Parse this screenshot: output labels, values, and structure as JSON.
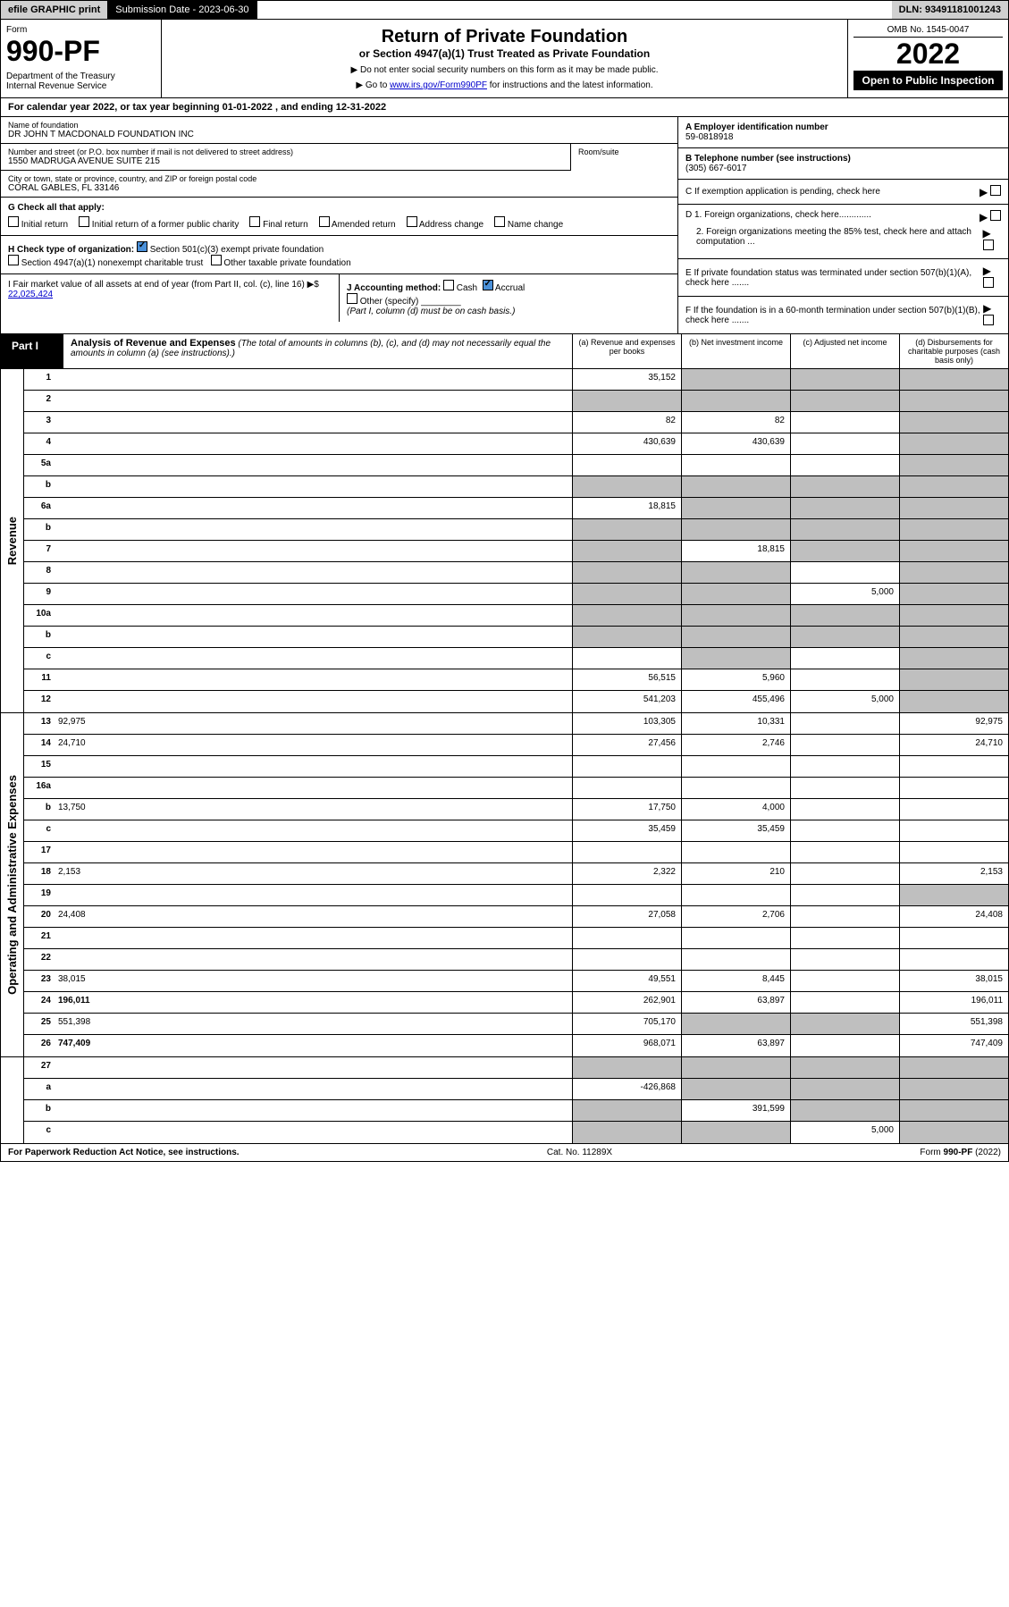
{
  "top": {
    "efile": "efile GRAPHIC print",
    "sub_label": "Submission Date - 2023-06-30",
    "dln": "DLN: 93491181001243"
  },
  "header": {
    "form_label": "Form",
    "form_num": "990-PF",
    "dept": "Department of the Treasury\nInternal Revenue Service",
    "title": "Return of Private Foundation",
    "subtitle": "or Section 4947(a)(1) Trust Treated as Private Foundation",
    "note1": "▶ Do not enter social security numbers on this form as it may be made public.",
    "note2_pre": "▶ Go to ",
    "note2_link": "www.irs.gov/Form990PF",
    "note2_post": " for instructions and the latest information.",
    "omb": "OMB No. 1545-0047",
    "year": "2022",
    "open": "Open to Public Inspection"
  },
  "cal_year": "For calendar year 2022, or tax year beginning 01-01-2022                    , and ending 12-31-2022",
  "info": {
    "name_lbl": "Name of foundation",
    "name_val": "DR JOHN T MACDONALD FOUNDATION INC",
    "addr_lbl": "Number and street (or P.O. box number if mail is not delivered to street address)",
    "addr_val": "1550 MADRUGA AVENUE SUITE 215",
    "room_lbl": "Room/suite",
    "city_lbl": "City or town, state or province, country, and ZIP or foreign postal code",
    "city_val": "CORAL GABLES, FL  33146",
    "a_lbl": "A Employer identification number",
    "a_val": "59-0818918",
    "b_lbl": "B Telephone number (see instructions)",
    "b_val": "(305) 667-6017",
    "c_lbl": "C If exemption application is pending, check here",
    "d1_lbl": "D 1. Foreign organizations, check here.............",
    "d2_lbl": "2. Foreign organizations meeting the 85% test, check here and attach computation ...",
    "e_lbl": "E If private foundation status was terminated under section 507(b)(1)(A), check here .......",
    "f_lbl": "F If the foundation is in a 60-month termination under section 507(b)(1)(B), check here ......."
  },
  "g": {
    "label": "G Check all that apply:",
    "opts": [
      "Initial return",
      "Initial return of a former public charity",
      "Final return",
      "Amended return",
      "Address change",
      "Name change"
    ]
  },
  "h": {
    "label": "H Check type of organization:",
    "opt1": "Section 501(c)(3) exempt private foundation",
    "opt2": "Section 4947(a)(1) nonexempt charitable trust",
    "opt3": "Other taxable private foundation"
  },
  "i": {
    "label": "I Fair market value of all assets at end of year (from Part II, col. (c), line 16) ▶$ ",
    "val": "22,025,424"
  },
  "j": {
    "label": "J Accounting method:",
    "cash": "Cash",
    "accrual": "Accrual",
    "other": "Other (specify)",
    "note": "(Part I, column (d) must be on cash basis.)"
  },
  "part1": {
    "label": "Part I",
    "title": "Analysis of Revenue and Expenses",
    "desc": " (The total of amounts in columns (b), (c), and (d) may not necessarily equal the amounts in column (a) (see instructions).)",
    "col_a": "(a) Revenue and expenses per books",
    "col_b": "(b) Net investment income",
    "col_c": "(c) Adjusted net income",
    "col_d": "(d) Disbursements for charitable purposes (cash basis only)"
  },
  "rows": [
    {
      "n": "1",
      "d": "",
      "a": "35,152",
      "b": "",
      "c": "",
      "grey": [
        "b",
        "c",
        "d"
      ]
    },
    {
      "n": "2",
      "d": "",
      "a": "",
      "b": "",
      "c": "",
      "grey": [
        "a",
        "b",
        "c",
        "d"
      ]
    },
    {
      "n": "3",
      "d": "",
      "a": "82",
      "b": "82",
      "c": "",
      "grey": [
        "d"
      ]
    },
    {
      "n": "4",
      "d": "",
      "a": "430,639",
      "b": "430,639",
      "c": "",
      "grey": [
        "d"
      ]
    },
    {
      "n": "5a",
      "d": "",
      "a": "",
      "b": "",
      "c": "",
      "grey": [
        "d"
      ]
    },
    {
      "n": "b",
      "d": "",
      "a": "",
      "b": "",
      "c": "",
      "grey": [
        "a",
        "b",
        "c",
        "d"
      ]
    },
    {
      "n": "6a",
      "d": "",
      "a": "18,815",
      "b": "",
      "c": "",
      "grey": [
        "b",
        "c",
        "d"
      ]
    },
    {
      "n": "b",
      "d": "",
      "a": "",
      "b": "",
      "c": "",
      "grey": [
        "a",
        "b",
        "c",
        "d"
      ]
    },
    {
      "n": "7",
      "d": "",
      "a": "",
      "b": "18,815",
      "c": "",
      "grey": [
        "a",
        "c",
        "d"
      ]
    },
    {
      "n": "8",
      "d": "",
      "a": "",
      "b": "",
      "c": "",
      "grey": [
        "a",
        "b",
        "d"
      ]
    },
    {
      "n": "9",
      "d": "",
      "a": "",
      "b": "",
      "c": "5,000",
      "grey": [
        "a",
        "b",
        "d"
      ]
    },
    {
      "n": "10a",
      "d": "",
      "a": "",
      "b": "",
      "c": "",
      "grey": [
        "a",
        "b",
        "c",
        "d"
      ]
    },
    {
      "n": "b",
      "d": "",
      "a": "",
      "b": "",
      "c": "",
      "grey": [
        "a",
        "b",
        "c",
        "d"
      ]
    },
    {
      "n": "c",
      "d": "",
      "a": "",
      "b": "",
      "c": "",
      "grey": [
        "b",
        "d"
      ]
    },
    {
      "n": "11",
      "d": "",
      "a": "56,515",
      "b": "5,960",
      "c": "",
      "grey": [
        "d"
      ]
    },
    {
      "n": "12",
      "d": "",
      "a": "541,203",
      "b": "455,496",
      "c": "5,000",
      "grey": [
        "d"
      ],
      "bold": true
    }
  ],
  "exp_rows": [
    {
      "n": "13",
      "d": "92,975",
      "a": "103,305",
      "b": "10,331",
      "c": ""
    },
    {
      "n": "14",
      "d": "24,710",
      "a": "27,456",
      "b": "2,746",
      "c": ""
    },
    {
      "n": "15",
      "d": "",
      "a": "",
      "b": "",
      "c": ""
    },
    {
      "n": "16a",
      "d": "",
      "a": "",
      "b": "",
      "c": ""
    },
    {
      "n": "b",
      "d": "13,750",
      "a": "17,750",
      "b": "4,000",
      "c": ""
    },
    {
      "n": "c",
      "d": "",
      "a": "35,459",
      "b": "35,459",
      "c": ""
    },
    {
      "n": "17",
      "d": "",
      "a": "",
      "b": "",
      "c": ""
    },
    {
      "n": "18",
      "d": "2,153",
      "a": "2,322",
      "b": "210",
      "c": ""
    },
    {
      "n": "19",
      "d": "",
      "a": "",
      "b": "",
      "c": "",
      "grey": [
        "d"
      ]
    },
    {
      "n": "20",
      "d": "24,408",
      "a": "27,058",
      "b": "2,706",
      "c": ""
    },
    {
      "n": "21",
      "d": "",
      "a": "",
      "b": "",
      "c": ""
    },
    {
      "n": "22",
      "d": "",
      "a": "",
      "b": "",
      "c": ""
    },
    {
      "n": "23",
      "d": "38,015",
      "a": "49,551",
      "b": "8,445",
      "c": ""
    },
    {
      "n": "24",
      "d": "196,011",
      "a": "262,901",
      "b": "63,897",
      "c": "",
      "bold": true
    },
    {
      "n": "25",
      "d": "551,398",
      "a": "705,170",
      "b": "",
      "c": "",
      "grey": [
        "b",
        "c"
      ]
    },
    {
      "n": "26",
      "d": "747,409",
      "a": "968,071",
      "b": "63,897",
      "c": "",
      "bold": true
    }
  ],
  "final_rows": [
    {
      "n": "27",
      "d": "",
      "a": "",
      "b": "",
      "c": "",
      "grey": [
        "a",
        "b",
        "c",
        "d"
      ]
    },
    {
      "n": "a",
      "d": "",
      "a": "-426,868",
      "b": "",
      "c": "",
      "grey": [
        "b",
        "c",
        "d"
      ],
      "bold": true
    },
    {
      "n": "b",
      "d": "",
      "a": "",
      "b": "391,599",
      "c": "",
      "grey": [
        "a",
        "c",
        "d"
      ],
      "bold": true
    },
    {
      "n": "c",
      "d": "",
      "a": "",
      "b": "",
      "c": "5,000",
      "grey": [
        "a",
        "b",
        "d"
      ],
      "bold": true
    }
  ],
  "side_rev": "Revenue",
  "side_exp": "Operating and Administrative Expenses",
  "footer": {
    "left": "For Paperwork Reduction Act Notice, see instructions.",
    "mid": "Cat. No. 11289X",
    "right": "Form 990-PF (2022)"
  }
}
